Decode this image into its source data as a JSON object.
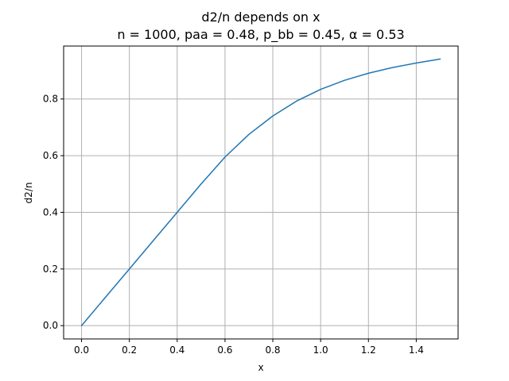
{
  "chart_data": {
    "type": "line",
    "title": "d2/n depends on x",
    "subtitle": "n = 1000, paa = 0.48, p_bb = 0.45, α = 0.53",
    "xlabel": "x",
    "ylabel": "d2/n",
    "xlim": [
      -0.075,
      1.575
    ],
    "ylim": [
      -0.047,
      0.987
    ],
    "xticks": [
      0.0,
      0.2,
      0.4,
      0.6,
      0.8,
      1.0,
      1.2,
      1.4
    ],
    "xtick_labels": [
      "0.0",
      "0.2",
      "0.4",
      "0.6",
      "0.8",
      "1.0",
      "1.2",
      "1.4"
    ],
    "yticks": [
      0.0,
      0.2,
      0.4,
      0.6,
      0.8
    ],
    "ytick_labels": [
      "0.0",
      "0.2",
      "0.4",
      "0.6",
      "0.8"
    ],
    "grid": true,
    "series": [
      {
        "color": "#1f77b4",
        "x": [
          0.0,
          0.1,
          0.2,
          0.3,
          0.4,
          0.5,
          0.6,
          0.7,
          0.8,
          0.9,
          1.0,
          1.1,
          1.2,
          1.3,
          1.4,
          1.5
        ],
        "y": [
          0.0,
          0.1,
          0.2,
          0.3,
          0.4,
          0.5,
          0.595,
          0.675,
          0.74,
          0.793,
          0.834,
          0.866,
          0.891,
          0.911,
          0.927,
          0.941
        ]
      }
    ]
  }
}
